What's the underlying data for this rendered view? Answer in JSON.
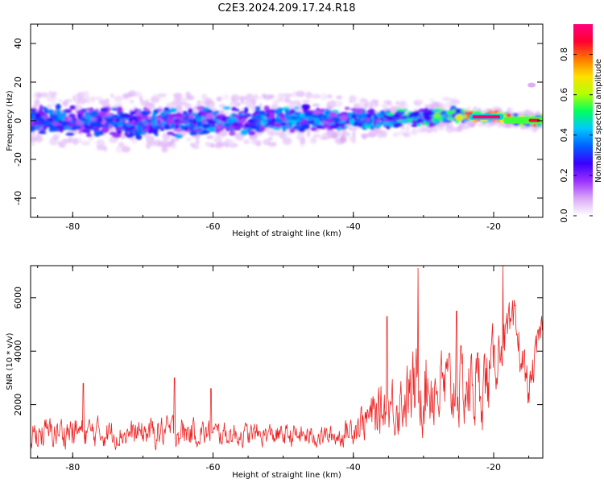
{
  "title": "C2E3.2024.209.17.24.R18",
  "chart_data": [
    {
      "type": "heatmap",
      "xlabel": "Height of straight line (km)",
      "ylabel": "Frequency (Hz)",
      "xlim": [
        -86,
        -13
      ],
      "ylim": [
        -50,
        50
      ],
      "xticks": [
        -80,
        -60,
        -40,
        -20
      ],
      "yticks": [
        -40,
        -20,
        0,
        20,
        40
      ],
      "colorbar": {
        "label": "Normalized spectral amplitude",
        "range": [
          0,
          0.95
        ],
        "ticks": [
          0.0,
          0.2,
          0.4,
          0.6,
          0.8
        ],
        "colormap": [
          "#ffffff",
          "#d9a8f5",
          "#9b30ff",
          "#3a00ff",
          "#0060ff",
          "#00c8ff",
          "#00ff60",
          "#b4ff00",
          "#ffe000",
          "#ff7800",
          "#ff0030",
          "#ff0080"
        ]
      },
      "band": {
        "description_values": "spectral energy concentrated near 0 Hz",
        "segments": [
          {
            "x": -86,
            "freq": 1,
            "halfwidth": 6,
            "amp": 0.35
          },
          {
            "x": -70,
            "freq": -1,
            "halfwidth": 7,
            "amp": 0.35
          },
          {
            "x": -55,
            "freq": 0,
            "halfwidth": 6,
            "amp": 0.4
          },
          {
            "x": -45,
            "freq": 1,
            "halfwidth": 6,
            "amp": 0.38
          },
          {
            "x": -35,
            "freq": 1,
            "halfwidth": 4,
            "amp": 0.45
          },
          {
            "x": -25,
            "freq": 3,
            "halfwidth": 4,
            "amp": 0.55
          },
          {
            "x": -23,
            "freq": 2,
            "halfwidth": 2,
            "amp": 0.9
          },
          {
            "x": -18,
            "freq": 2,
            "halfwidth": 2,
            "amp": 0.9
          },
          {
            "x": -16,
            "freq": 0,
            "halfwidth": 2,
            "amp": 0.6
          },
          {
            "x": -13,
            "freq": 0,
            "halfwidth": 2,
            "amp": 0.8
          }
        ]
      }
    },
    {
      "type": "line",
      "xlabel": "Height of straight line (km)",
      "ylabel": "SNR (10 * v/v)",
      "xlim": [
        -86,
        -13
      ],
      "ylim": [
        0,
        7200
      ],
      "xticks": [
        -80,
        -60,
        -40,
        -20
      ],
      "yticks": [
        2000,
        4000,
        6000
      ],
      "color": "#ee2222",
      "envelope": [
        {
          "x": -86,
          "mean": 900,
          "spread": 800
        },
        {
          "x": -80,
          "mean": 1000,
          "spread": 900
        },
        {
          "x": -72,
          "mean": 900,
          "spread": 700
        },
        {
          "x": -66,
          "mean": 1000,
          "spread": 900
        },
        {
          "x": -60,
          "mean": 900,
          "spread": 700
        },
        {
          "x": -50,
          "mean": 850,
          "spread": 600
        },
        {
          "x": -42,
          "mean": 800,
          "spread": 600
        },
        {
          "x": -38,
          "mean": 1500,
          "spread": 1200
        },
        {
          "x": -33,
          "mean": 2200,
          "spread": 1900
        },
        {
          "x": -30,
          "mean": 2800,
          "spread": 2500
        },
        {
          "x": -26,
          "mean": 2500,
          "spread": 2200
        },
        {
          "x": -21,
          "mean": 2800,
          "spread": 2300
        },
        {
          "x": -19,
          "mean": 4300,
          "spread": 1400
        },
        {
          "x": -17,
          "mean": 4800,
          "spread": 1500
        },
        {
          "x": -15,
          "mean": 2500,
          "spread": 1100
        },
        {
          "x": -13,
          "mean": 5300,
          "spread": 900
        }
      ],
      "peaks": [
        {
          "x": -30.8,
          "y": 7100
        },
        {
          "x": -18.7,
          "y": 7200
        },
        {
          "x": -65.5,
          "y": 3000
        },
        {
          "x": -78.5,
          "y": 2800
        },
        {
          "x": -60.3,
          "y": 2600
        },
        {
          "x": -35.2,
          "y": 5300
        },
        {
          "x": -25.3,
          "y": 5500
        }
      ]
    }
  ]
}
